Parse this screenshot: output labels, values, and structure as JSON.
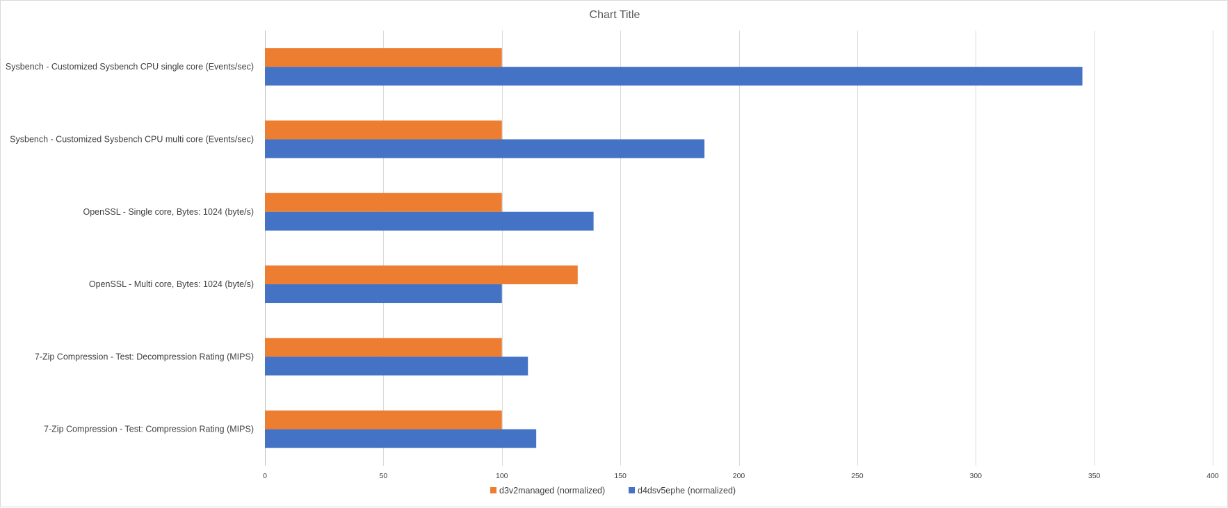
{
  "chart_data": {
    "type": "bar",
    "orientation": "horizontal",
    "title": "Chart Title",
    "xlabel": "",
    "ylabel": "",
    "xlim": [
      0,
      400
    ],
    "xticks": [
      0,
      50,
      100,
      150,
      200,
      250,
      300,
      350,
      400
    ],
    "grid": true,
    "legend_position": "bottom",
    "categories": [
      "Sysbench - Customized Sysbench CPU single core (Events/sec)",
      "Sysbench - Customized Sysbench CPU multi core (Events/sec)",
      "OpenSSL - Single core, Bytes: 1024 (byte/s)",
      "OpenSSL - Multi core, Bytes: 1024 (byte/s)",
      "7-Zip Compression - Test: Decompression Rating (MIPS)",
      "7-Zip Compression - Test: Compression Rating (MIPS)"
    ],
    "series": [
      {
        "name": "d3v2managed (normalized)",
        "color": "#ED7D31",
        "values": [
          100,
          100,
          100,
          132,
          100,
          100
        ]
      },
      {
        "name": "d4dsv5ephe (normalized)",
        "color": "#4472C4",
        "values": [
          345,
          185.5,
          138.7,
          100,
          111,
          114.5
        ]
      }
    ]
  }
}
